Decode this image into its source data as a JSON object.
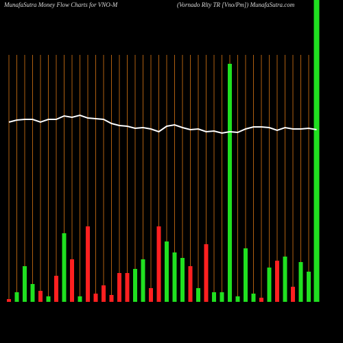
{
  "chart_data": {
    "type": "bar",
    "title": "MunafaSutra  Money Flow  Charts for VNO-M",
    "subtitle": "(Vornado  Rlty TR [Vno/Pm])  MunafaSutra.com",
    "values": [
      4,
      14,
      52,
      26,
      16,
      8,
      38,
      100,
      62,
      8,
      110,
      12,
      24,
      10,
      42,
      42,
      48,
      62,
      20,
      110,
      88,
      72,
      64,
      52,
      20,
      84,
      14,
      14,
      347,
      8,
      78,
      12,
      6,
      50,
      60,
      66,
      22,
      58,
      44,
      445
    ],
    "colors": [
      "#ff2020",
      "#20e020",
      "#20e020",
      "#20e020",
      "#ff2020",
      "#20e020",
      "#ff2020",
      "#20e020",
      "#ff2020",
      "#20e020",
      "#ff2020",
      "#ff2020",
      "#ff2020",
      "#ff2020",
      "#ff2020",
      "#ff2020",
      "#20e020",
      "#20e020",
      "#ff2020",
      "#ff2020",
      "#20e020",
      "#20e020",
      "#20e020",
      "#ff2020",
      "#20e020",
      "#ff2020",
      "#20e020",
      "#20e020",
      "#20e020",
      "#20e020",
      "#20e020",
      "#20e020",
      "#ff2020",
      "#20e020",
      "#ff2020",
      "#20e020",
      "#ff2020",
      "#20e020",
      "#20e020",
      "#20e020"
    ],
    "series": [
      {
        "values": [
          262,
          265,
          266,
          266,
          262,
          266,
          266,
          271,
          269,
          272,
          268,
          267,
          266,
          260,
          257,
          256,
          253,
          254,
          252,
          248,
          256,
          258,
          254,
          251,
          252,
          248,
          249,
          246,
          248,
          247,
          252,
          255,
          255,
          254,
          250,
          254,
          252,
          252,
          253,
          251
        ],
        "color": "#ffffff"
      }
    ],
    "ylim": [
      0,
      440
    ],
    "grid": true,
    "grid_color": "#b06010"
  }
}
